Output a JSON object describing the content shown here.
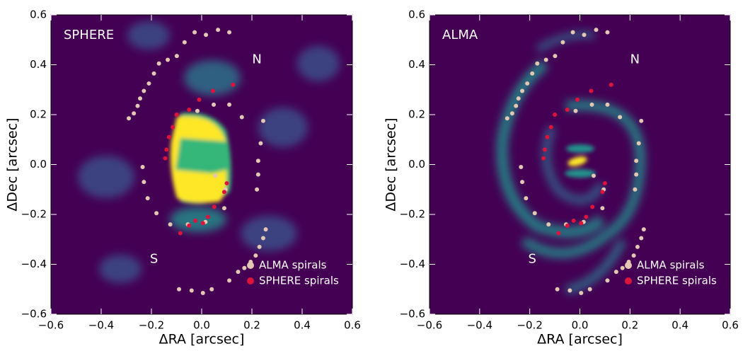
{
  "chart_data": [
    {
      "type": "scatter",
      "title": "SPHERE",
      "annotations": [
        "N",
        "S"
      ],
      "x_label": "ΔRA [arcsec]",
      "y_label": "ΔDec [arcsec]",
      "xlim": [
        -0.6,
        0.6
      ],
      "ylim": [
        -0.6,
        0.6
      ],
      "xticks": [
        {
          "value": -0.6,
          "label": "−0.6"
        },
        {
          "value": -0.4,
          "label": "−0.4"
        },
        {
          "value": -0.2,
          "label": "−0.2"
        },
        {
          "value": 0.0,
          "label": "0.0"
        },
        {
          "value": 0.2,
          "label": "0.2"
        },
        {
          "value": 0.4,
          "label": "0.4"
        },
        {
          "value": 0.6,
          "label": "0.6"
        }
      ],
      "yticks": [
        {
          "value": -0.6,
          "label": "−0.6"
        },
        {
          "value": -0.4,
          "label": "−0.4"
        },
        {
          "value": -0.2,
          "label": "−0.2"
        },
        {
          "value": 0.0,
          "label": "0.0"
        },
        {
          "value": 0.2,
          "label": "0.2"
        },
        {
          "value": 0.4,
          "label": "0.4"
        },
        {
          "value": 0.6,
          "label": "0.6"
        }
      ],
      "legend": "lower right",
      "series": [
        {
          "name": "ALMA spirals",
          "color": "#e2c7b2",
          "x": [
            0.11,
            0.065,
            0.017,
            -0.028,
            -0.068,
            -0.099,
            -0.135,
            -0.17,
            -0.19,
            -0.21,
            -0.23,
            -0.245,
            -0.255,
            -0.27,
            -0.29,
            -0.017,
            0.048,
            0.11,
            0.16,
            0.245,
            0.235,
            0.225,
            0.225,
            0.22,
            -0.235,
            -0.23,
            -0.215,
            -0.18,
            -0.125,
            -0.055,
            0.015,
            0.09,
            0.055,
            0.095,
            0.255,
            0.245,
            0.23,
            0.215,
            0.195,
            0.17,
            0.145,
            0.11,
            0.04,
            0.005,
            -0.04,
            -0.09
          ],
          "y": [
            0.53,
            0.54,
            0.52,
            0.53,
            0.49,
            0.435,
            0.42,
            0.405,
            0.365,
            0.325,
            0.295,
            0.265,
            0.235,
            0.205,
            0.185,
            0.215,
            0.24,
            0.24,
            0.19,
            0.175,
            0.085,
            0.015,
            -0.04,
            -0.1,
            -0.01,
            -0.07,
            -0.135,
            -0.195,
            -0.24,
            -0.24,
            -0.23,
            -0.175,
            -0.045,
            -0.1,
            -0.26,
            -0.295,
            -0.33,
            -0.365,
            -0.39,
            -0.415,
            -0.43,
            -0.465,
            -0.5,
            -0.515,
            -0.505,
            -0.5
          ]
        },
        {
          "name": "SPHERE spirals",
          "color": "#dc143c",
          "x": [
            0.125,
            0.045,
            -0.01,
            -0.05,
            -0.1,
            -0.115,
            -0.13,
            -0.14,
            -0.145,
            0.1,
            0.09,
            0.05,
            0.025,
            0.005,
            -0.025,
            -0.05,
            -0.085
          ],
          "y": [
            0.32,
            0.295,
            0.26,
            0.22,
            0.2,
            0.15,
            0.11,
            0.06,
            0.025,
            -0.075,
            -0.11,
            -0.17,
            -0.21,
            -0.235,
            -0.225,
            -0.245,
            -0.275
          ]
        }
      ]
    },
    {
      "type": "scatter",
      "title": "ALMA",
      "annotations": [
        "N",
        "S"
      ],
      "x_label": "ΔRA [arcsec]",
      "y_label": "ΔDec [arcsec]",
      "xlim": [
        -0.6,
        0.6
      ],
      "ylim": [
        -0.6,
        0.6
      ],
      "xticks": [
        {
          "value": -0.6,
          "label": "−0.6"
        },
        {
          "value": -0.4,
          "label": "−0.4"
        },
        {
          "value": -0.2,
          "label": "−0.2"
        },
        {
          "value": 0.0,
          "label": "0.0"
        },
        {
          "value": 0.2,
          "label": "0.2"
        },
        {
          "value": 0.4,
          "label": "0.4"
        },
        {
          "value": 0.6,
          "label": "0.6"
        }
      ],
      "yticks": [
        {
          "value": -0.6,
          "label": "−0.6"
        },
        {
          "value": -0.4,
          "label": "−0.4"
        },
        {
          "value": -0.2,
          "label": "−0.2"
        },
        {
          "value": 0.0,
          "label": "0.0"
        },
        {
          "value": 0.2,
          "label": "0.2"
        },
        {
          "value": 0.4,
          "label": "0.4"
        },
        {
          "value": 0.6,
          "label": "0.6"
        }
      ],
      "legend": "lower right",
      "series": [
        {
          "name": "ALMA spirals",
          "color": "#e2c7b2",
          "x": [
            0.11,
            0.065,
            0.017,
            -0.028,
            -0.068,
            -0.099,
            -0.135,
            -0.17,
            -0.19,
            -0.21,
            -0.23,
            -0.245,
            -0.255,
            -0.27,
            -0.29,
            -0.017,
            0.048,
            0.11,
            0.16,
            0.245,
            0.235,
            0.225,
            0.225,
            0.22,
            -0.235,
            -0.23,
            -0.215,
            -0.18,
            -0.125,
            -0.055,
            0.015,
            0.09,
            0.055,
            0.095,
            0.255,
            0.245,
            0.23,
            0.215,
            0.195,
            0.17,
            0.145,
            0.11,
            0.04,
            0.005,
            -0.04,
            -0.09
          ],
          "y": [
            0.53,
            0.54,
            0.52,
            0.53,
            0.49,
            0.435,
            0.42,
            0.405,
            0.365,
            0.325,
            0.295,
            0.265,
            0.235,
            0.205,
            0.185,
            0.215,
            0.24,
            0.24,
            0.19,
            0.175,
            0.085,
            0.015,
            -0.04,
            -0.1,
            -0.01,
            -0.07,
            -0.135,
            -0.195,
            -0.24,
            -0.24,
            -0.23,
            -0.175,
            -0.045,
            -0.1,
            -0.26,
            -0.295,
            -0.33,
            -0.365,
            -0.39,
            -0.415,
            -0.43,
            -0.465,
            -0.5,
            -0.515,
            -0.505,
            -0.5
          ]
        },
        {
          "name": "SPHERE spirals",
          "color": "#dc143c",
          "x": [
            0.125,
            0.045,
            -0.01,
            -0.05,
            -0.1,
            -0.115,
            -0.13,
            -0.14,
            -0.145,
            0.1,
            0.09,
            0.05,
            0.025,
            0.005,
            -0.025,
            -0.05,
            -0.085
          ],
          "y": [
            0.32,
            0.295,
            0.26,
            0.22,
            0.2,
            0.15,
            0.11,
            0.06,
            0.025,
            -0.075,
            -0.11,
            -0.17,
            -0.21,
            -0.235,
            -0.225,
            -0.245,
            -0.275
          ]
        }
      ]
    }
  ]
}
